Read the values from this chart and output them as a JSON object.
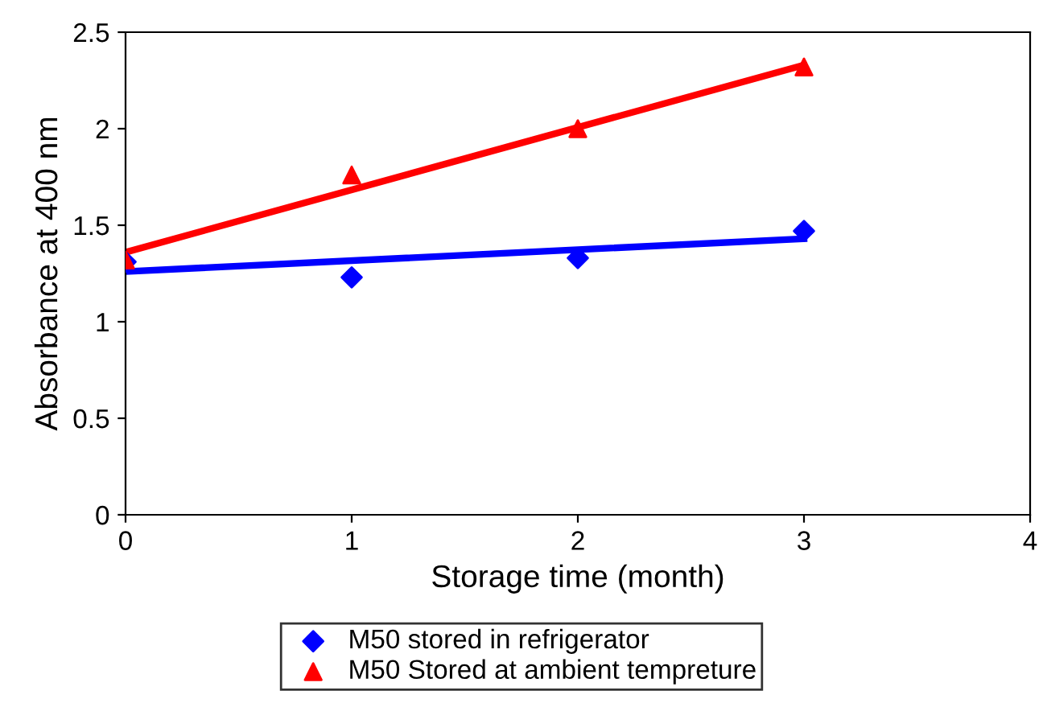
{
  "chart_data": {
    "type": "scatter",
    "xlabel": "Storage time (month)",
    "ylabel": "Absorbance at 400 nm",
    "xlim": [
      0,
      4
    ],
    "xticks": [
      0,
      1,
      2,
      3,
      4
    ],
    "ylim": [
      0,
      2.5
    ],
    "yticks": [
      0,
      0.5,
      1,
      1.5,
      2,
      2.5
    ],
    "grid": false,
    "legend": "bottom",
    "series": [
      {
        "name": "M50 stored in refrigerator",
        "color": "#0000ff",
        "marker": "diamond",
        "x": [
          0,
          1,
          2,
          3
        ],
        "values": [
          1.31,
          1.23,
          1.33,
          1.47
        ]
      },
      {
        "name": "M50 Stored at ambient tempreture",
        "color": "#ff0000",
        "marker": "triangle",
        "x": [
          0,
          1,
          2,
          3
        ],
        "values": [
          1.32,
          1.76,
          2.0,
          2.32
        ]
      },
      {
        "type": "line",
        "color": "#0000ff",
        "x": [
          0,
          3
        ],
        "values": [
          1.26,
          1.43
        ]
      },
      {
        "type": "line",
        "color": "#ff0000",
        "x": [
          0,
          3
        ],
        "values": [
          1.36,
          2.33
        ]
      }
    ]
  }
}
